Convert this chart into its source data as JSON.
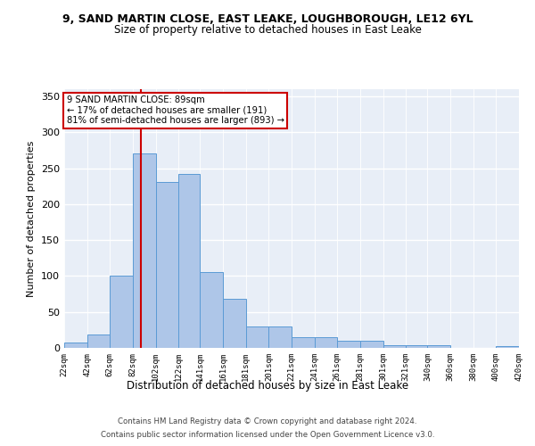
{
  "title": "9, SAND MARTIN CLOSE, EAST LEAKE, LOUGHBOROUGH, LE12 6YL",
  "subtitle": "Size of property relative to detached houses in East Leake",
  "xlabel": "Distribution of detached houses by size in East Leake",
  "ylabel": "Number of detached properties",
  "bar_color": "#aec6e8",
  "bar_edge_color": "#5b9bd5",
  "bg_color": "#e8eef7",
  "grid_color": "#ffffff",
  "annotation_box_color": "#ffffff",
  "annotation_border_color": "#cc0000",
  "vline_color": "#cc0000",
  "vline_x": 89,
  "annotation_text_line1": "9 SAND MARTIN CLOSE: 89sqm",
  "annotation_text_line2": "← 17% of detached houses are smaller (191)",
  "annotation_text_line3": "81% of semi-detached houses are larger (893) →",
  "footer_line1": "Contains HM Land Registry data © Crown copyright and database right 2024.",
  "footer_line2": "Contains public sector information licensed under the Open Government Licence v3.0.",
  "bin_edges": [
    22,
    42,
    62,
    82,
    102,
    122,
    141,
    161,
    181,
    201,
    221,
    241,
    261,
    281,
    301,
    321,
    340,
    360,
    380,
    400,
    420
  ],
  "bin_labels": [
    "22sqm",
    "42sqm",
    "62sqm",
    "82sqm",
    "102sqm",
    "122sqm",
    "141sqm",
    "161sqm",
    "181sqm",
    "201sqm",
    "221sqm",
    "241sqm",
    "261sqm",
    "281sqm",
    "301sqm",
    "321sqm",
    "340sqm",
    "360sqm",
    "380sqm",
    "400sqm",
    "420sqm"
  ],
  "counts": [
    7,
    19,
    100,
    271,
    231,
    242,
    105,
    68,
    30,
    30,
    15,
    15,
    10,
    10,
    4,
    4,
    4,
    0,
    0,
    3
  ],
  "ylim": [
    0,
    360
  ],
  "yticks": [
    0,
    50,
    100,
    150,
    200,
    250,
    300,
    350
  ]
}
